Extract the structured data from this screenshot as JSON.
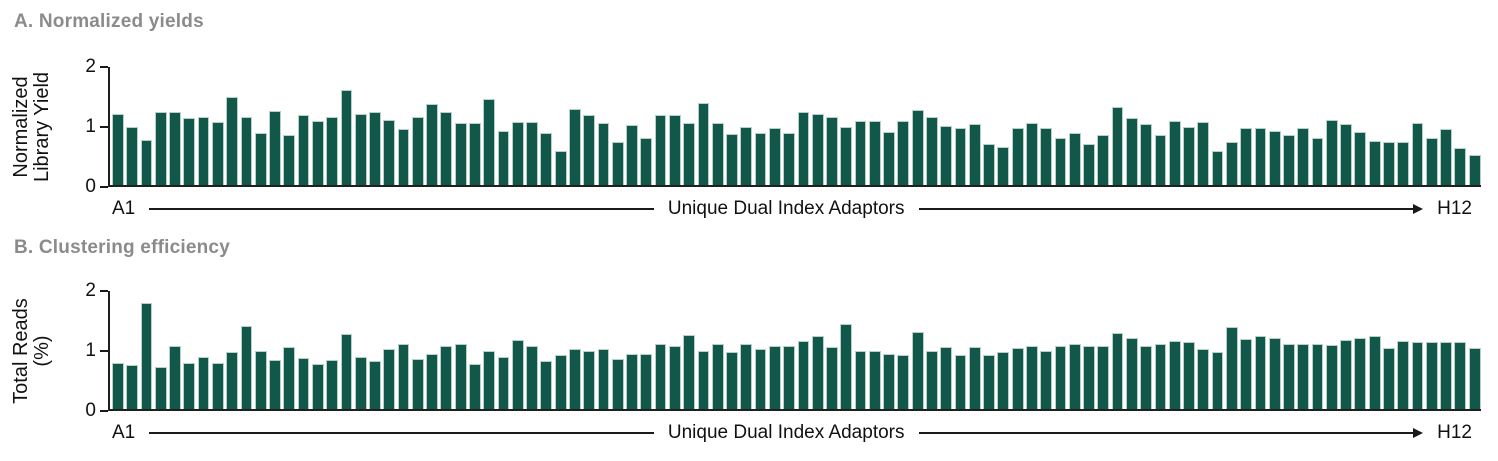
{
  "colors": {
    "bar_fill": "#12584a",
    "bar_stroke": "#b9d0c8",
    "title_gray": "#8b8b8e",
    "axis_black": "#1a1a1a"
  },
  "figure": {
    "panels": [
      {
        "title": "A. Normalized yields",
        "y_axis": {
          "label_line1": "Normalized",
          "label_line2": "Library Yield",
          "tick_top": "2",
          "tick_mid": "1",
          "tick_bottom": "0"
        },
        "x_axis": {
          "start_label": "A1",
          "center_label": "Unique Dual Index Adaptors",
          "end_label": "H12"
        }
      },
      {
        "title": "B. Clustering efficiency",
        "y_axis": {
          "label_line1": "Total Reads",
          "label_line2": "(%)",
          "tick_top": "2",
          "tick_mid": "1",
          "tick_bottom": "0"
        },
        "x_axis": {
          "start_label": "A1",
          "center_label": "Unique Dual Index Adaptors",
          "end_label": "H12"
        }
      }
    ]
  },
  "chart_data": [
    {
      "type": "bar",
      "title": "A. Normalized yields",
      "ylabel": "Normalized Library Yield",
      "xlabel": "Unique Dual Index Adaptors",
      "x_range_labels": [
        "A1",
        "H12"
      ],
      "ylim": [
        0,
        2
      ],
      "yticks": [
        0,
        1,
        2
      ],
      "n_bars": 96,
      "grid": false,
      "legend": false,
      "values": [
        1.21,
        0.98,
        0.76,
        1.24,
        1.24,
        1.14,
        1.16,
        1.07,
        1.5,
        1.16,
        0.89,
        1.25,
        0.85,
        1.19,
        1.08,
        1.15,
        1.61,
        1.21,
        1.23,
        1.11,
        0.95,
        1.16,
        1.37,
        1.24,
        1.05,
        1.05,
        1.45,
        0.91,
        1.07,
        1.07,
        0.89,
        0.57,
        1.29,
        1.19,
        1.05,
        0.73,
        1.01,
        0.79,
        1.18,
        1.18,
        1.05,
        1.39,
        1.05,
        0.86,
        0.98,
        0.89,
        0.96,
        0.89,
        1.23,
        1.2,
        1.16,
        0.98,
        1.08,
        1.08,
        0.9,
        1.08,
        1.27,
        1.16,
        1.0,
        0.97,
        1.03,
        0.69,
        0.65,
        0.96,
        1.05,
        0.97,
        0.79,
        0.89,
        0.69,
        0.85,
        1.33,
        1.14,
        1.03,
        0.85,
        1.08,
        0.99,
        1.07,
        0.57,
        0.73,
        0.96,
        0.96,
        0.92,
        0.85,
        0.97,
        0.79,
        1.1,
        1.03,
        0.9,
        0.75,
        0.73,
        0.73,
        1.05,
        0.79,
        0.95,
        0.62,
        0.51
      ]
    },
    {
      "type": "bar",
      "title": "B. Clustering efficiency",
      "ylabel": "Total Reads (%)",
      "xlabel": "Unique Dual Index Adaptors",
      "x_range_labels": [
        "A1",
        "H12"
      ],
      "ylim": [
        0,
        2
      ],
      "yticks": [
        0,
        1,
        2
      ],
      "n_bars": 96,
      "grid": false,
      "legend": false,
      "values": [
        0.78,
        0.75,
        1.79,
        0.72,
        1.06,
        0.78,
        0.88,
        0.78,
        0.96,
        1.41,
        0.98,
        0.83,
        1.05,
        0.87,
        0.77,
        0.83,
        1.27,
        0.88,
        0.82,
        1.01,
        1.11,
        0.85,
        0.94,
        1.07,
        1.1,
        0.77,
        0.99,
        0.89,
        1.17,
        1.07,
        0.82,
        0.92,
        1.01,
        0.99,
        1.02,
        0.85,
        0.93,
        0.93,
        1.1,
        1.07,
        1.25,
        0.99,
        1.1,
        0.96,
        1.1,
        1.01,
        1.07,
        1.06,
        1.15,
        1.23,
        1.05,
        1.44,
        0.99,
        0.99,
        0.93,
        0.91,
        1.31,
        0.98,
        1.05,
        0.92,
        1.05,
        0.91,
        0.96,
        1.03,
        1.06,
        0.98,
        1.07,
        1.1,
        1.07,
        1.07,
        1.28,
        1.21,
        1.07,
        1.1,
        1.15,
        1.13,
        1.01,
        0.96,
        1.39,
        1.18,
        1.23,
        1.2,
        1.1,
        1.1,
        1.1,
        1.09,
        1.17,
        1.21,
        1.24,
        1.04,
        1.15,
        1.13,
        1.13,
        1.13,
        1.13,
        1.04
      ]
    }
  ]
}
